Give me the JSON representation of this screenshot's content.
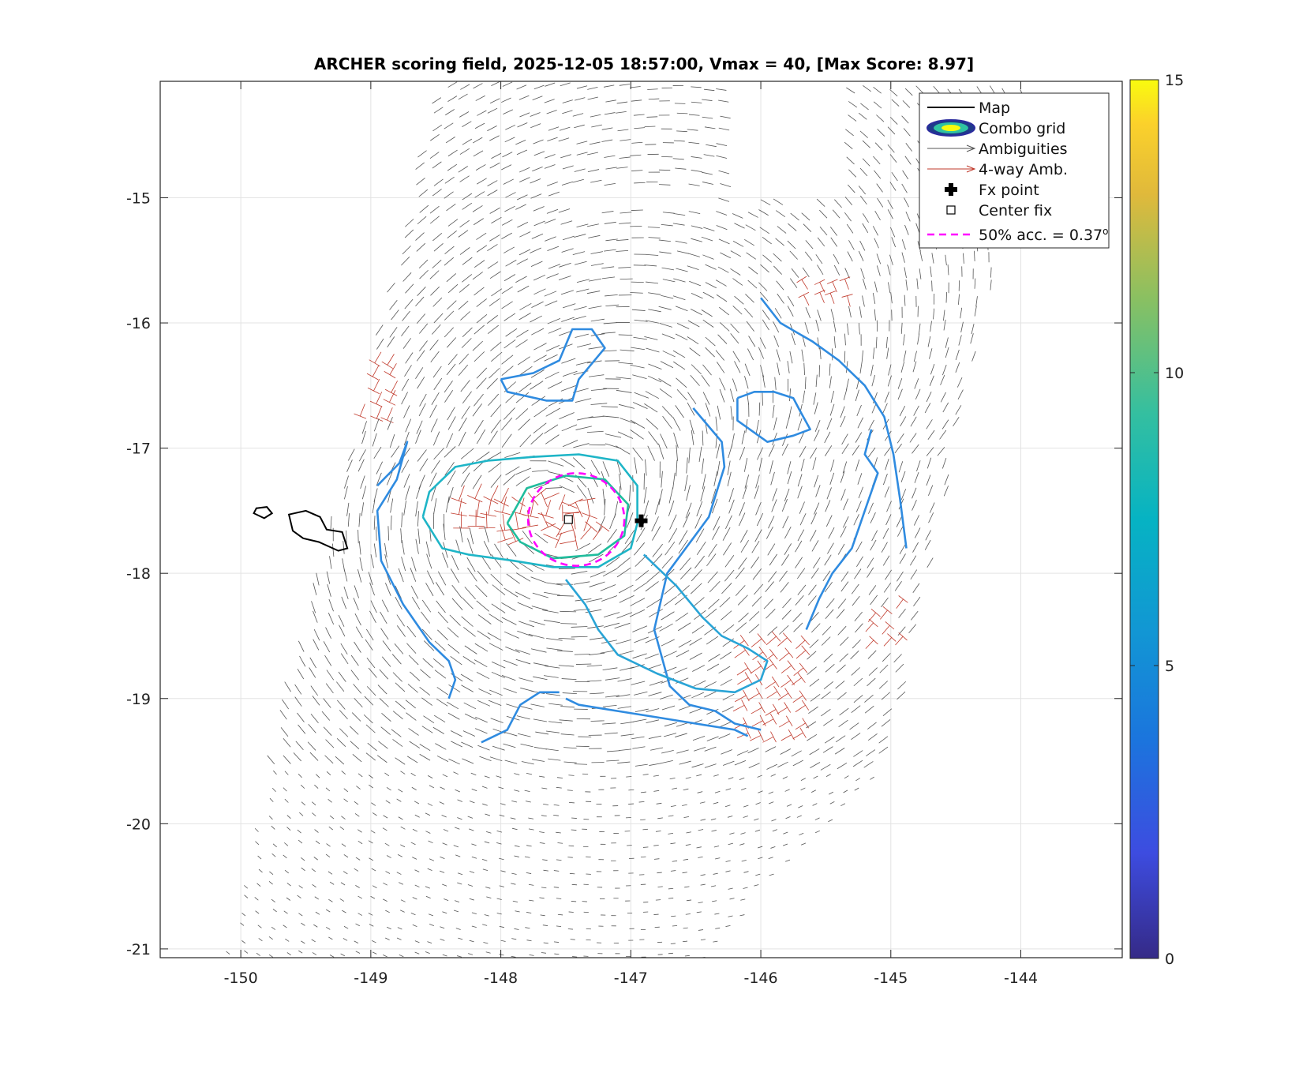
{
  "chart_data": {
    "type": "scatter",
    "title": "ARCHER scoring field, 2025-12-05 18:57:00, Vmax = 40, [Max Score: 8.97]",
    "xlim": [
      -150.62,
      -143.22
    ],
    "ylim": [
      -21.07,
      -14.07
    ],
    "x_ticks": [
      "-150",
      "-149",
      "-148",
      "-147",
      "-146",
      "-145",
      "-144"
    ],
    "y_ticks": [
      "-15",
      "-16",
      "-17",
      "-18",
      "-19",
      "-20",
      "-21"
    ],
    "grid": true,
    "legend_position": "top-right",
    "legend": [
      {
        "key": "map",
        "label": "Map"
      },
      {
        "key": "combo",
        "label": "Combo grid"
      },
      {
        "key": "amb",
        "label": "Ambiguities"
      },
      {
        "key": "amb4",
        "label": "4-way Amb."
      },
      {
        "key": "fx",
        "label": "Fx point"
      },
      {
        "key": "center",
        "label": "Center fix"
      },
      {
        "key": "acc",
        "label": "50% acc. = 0.37",
        "superscript": "o"
      }
    ],
    "fx_point": {
      "x": -146.92,
      "y": -17.58
    },
    "center_fix": {
      "x": -147.48,
      "y": -17.57
    },
    "accuracy_circle": {
      "x": -147.42,
      "y": -17.57,
      "radius_deg": 0.37
    },
    "colorbar": {
      "min": 0,
      "max": 15,
      "ticks": [
        "0",
        "5",
        "10",
        "15"
      ]
    },
    "contours": [
      {
        "level": 3.5,
        "color": "#2f8be0",
        "points": [
          [
            -146.52,
            -16.68
          ],
          [
            -146.3,
            -16.95
          ],
          [
            -146.28,
            -17.15
          ],
          [
            -146.4,
            -17.55
          ],
          [
            -146.72,
            -18.0
          ],
          [
            -146.82,
            -18.45
          ],
          [
            -146.7,
            -18.9
          ],
          [
            -146.55,
            -19.05
          ],
          [
            -146.35,
            -19.1
          ],
          [
            -146.2,
            -19.2
          ],
          [
            -146.0,
            -19.25
          ]
        ]
      },
      {
        "level": 3.8,
        "color": "#2f8be0",
        "points": [
          [
            -146.0,
            -15.8
          ],
          [
            -145.85,
            -16.0
          ],
          [
            -145.6,
            -16.15
          ],
          [
            -145.4,
            -16.3
          ],
          [
            -145.2,
            -16.5
          ],
          [
            -145.05,
            -16.75
          ],
          [
            -144.98,
            -17.05
          ],
          [
            -144.93,
            -17.4
          ],
          [
            -144.88,
            -17.8
          ]
        ]
      },
      {
        "level": 4.2,
        "color": "#2f8be0",
        "points": [
          [
            -148.0,
            -16.45
          ],
          [
            -147.75,
            -16.4
          ],
          [
            -147.55,
            -16.3
          ],
          [
            -147.45,
            -16.05
          ],
          [
            -147.3,
            -16.05
          ],
          [
            -147.2,
            -16.2
          ],
          [
            -147.4,
            -16.45
          ],
          [
            -147.45,
            -16.62
          ],
          [
            -147.65,
            -16.62
          ],
          [
            -147.95,
            -16.55
          ],
          [
            -148.0,
            -16.45
          ]
        ]
      },
      {
        "level": 4.6,
        "color": "#2f8be0",
        "points": [
          [
            -148.95,
            -17.3
          ],
          [
            -148.78,
            -17.12
          ],
          [
            -148.72,
            -16.95
          ],
          [
            -148.8,
            -17.25
          ],
          [
            -148.95,
            -17.5
          ],
          [
            -148.92,
            -17.9
          ],
          [
            -148.75,
            -18.25
          ],
          [
            -148.55,
            -18.55
          ],
          [
            -148.4,
            -18.7
          ],
          [
            -148.35,
            -18.85
          ],
          [
            -148.4,
            -19.0
          ]
        ]
      },
      {
        "level": 5.0,
        "color": "#2f8be0",
        "points": [
          [
            -146.18,
            -16.6
          ],
          [
            -146.05,
            -16.55
          ],
          [
            -145.9,
            -16.55
          ],
          [
            -145.75,
            -16.6
          ],
          [
            -145.7,
            -16.7
          ],
          [
            -145.62,
            -16.85
          ],
          [
            -145.75,
            -16.9
          ],
          [
            -145.95,
            -16.95
          ],
          [
            -146.18,
            -16.78
          ],
          [
            -146.18,
            -16.6
          ]
        ]
      },
      {
        "level": 5.2,
        "color": "#2f8be0",
        "points": [
          [
            -147.5,
            -19.0
          ],
          [
            -147.4,
            -19.05
          ],
          [
            -147.1,
            -19.1
          ],
          [
            -146.8,
            -19.15
          ],
          [
            -146.5,
            -19.2
          ],
          [
            -146.2,
            -19.25
          ],
          [
            -146.1,
            -19.3
          ]
        ]
      },
      {
        "level": 5.4,
        "color": "#2f8be0",
        "points": [
          [
            -148.15,
            -19.35
          ],
          [
            -147.95,
            -19.25
          ],
          [
            -147.85,
            -19.05
          ],
          [
            -147.7,
            -18.95
          ],
          [
            -147.55,
            -18.95
          ]
        ]
      },
      {
        "level": 5.6,
        "color": "#2f8be0",
        "points": [
          [
            -145.65,
            -18.45
          ],
          [
            -145.55,
            -18.2
          ],
          [
            -145.45,
            -18.0
          ],
          [
            -145.3,
            -17.8
          ],
          [
            -145.2,
            -17.5
          ],
          [
            -145.1,
            -17.2
          ],
          [
            -145.2,
            -17.05
          ],
          [
            -145.15,
            -16.85
          ]
        ]
      },
      {
        "level": 6.0,
        "color": "#29a4d6",
        "points": [
          [
            -147.5,
            -18.05
          ],
          [
            -147.35,
            -18.25
          ],
          [
            -147.25,
            -18.45
          ],
          [
            -147.1,
            -18.65
          ],
          [
            -146.8,
            -18.8
          ],
          [
            -146.5,
            -18.92
          ],
          [
            -146.2,
            -18.95
          ],
          [
            -146.0,
            -18.85
          ],
          [
            -145.95,
            -18.7
          ],
          [
            -146.1,
            -18.6
          ],
          [
            -146.3,
            -18.5
          ],
          [
            -146.45,
            -18.35
          ],
          [
            -146.65,
            -18.1
          ],
          [
            -146.9,
            -17.85
          ]
        ]
      },
      {
        "level": 6.5,
        "color": "#1eb5c7",
        "points": [
          [
            -148.6,
            -17.55
          ],
          [
            -148.55,
            -17.35
          ],
          [
            -148.35,
            -17.15
          ],
          [
            -148.1,
            -17.1
          ],
          [
            -147.75,
            -17.07
          ],
          [
            -147.4,
            -17.05
          ],
          [
            -147.1,
            -17.1
          ],
          [
            -146.95,
            -17.3
          ],
          [
            -146.95,
            -17.6
          ],
          [
            -147.0,
            -17.8
          ],
          [
            -147.25,
            -17.95
          ],
          [
            -147.6,
            -17.95
          ],
          [
            -147.9,
            -17.9
          ],
          [
            -148.25,
            -17.85
          ],
          [
            -148.45,
            -17.8
          ],
          [
            -148.6,
            -17.55
          ]
        ]
      },
      {
        "level": 7.5,
        "color": "#20bd9d",
        "points": [
          [
            -147.95,
            -17.6
          ],
          [
            -147.8,
            -17.32
          ],
          [
            -147.5,
            -17.22
          ],
          [
            -147.2,
            -17.25
          ],
          [
            -147.02,
            -17.45
          ],
          [
            -147.05,
            -17.7
          ],
          [
            -147.25,
            -17.85
          ],
          [
            -147.6,
            -17.88
          ],
          [
            -147.85,
            -17.75
          ],
          [
            -147.95,
            -17.6
          ]
        ]
      }
    ],
    "islands": [
      [
        [
          -149.88,
          -17.48
        ],
        [
          -149.8,
          -17.47
        ],
        [
          -149.76,
          -17.52
        ],
        [
          -149.82,
          -17.56
        ],
        [
          -149.9,
          -17.52
        ],
        [
          -149.88,
          -17.48
        ]
      ],
      [
        [
          -149.63,
          -17.53
        ],
        [
          -149.5,
          -17.5
        ],
        [
          -149.39,
          -17.55
        ],
        [
          -149.34,
          -17.65
        ],
        [
          -149.22,
          -17.67
        ],
        [
          -149.18,
          -17.8
        ],
        [
          -149.25,
          -17.82
        ],
        [
          -149.4,
          -17.75
        ],
        [
          -149.52,
          -17.72
        ],
        [
          -149.6,
          -17.66
        ],
        [
          -149.63,
          -17.53
        ]
      ]
    ],
    "four_way_regions": [
      {
        "x": [
          -146.2,
          -145.6
        ],
        "y": [
          -18.5,
          -19.35
        ]
      },
      {
        "x": [
          -145.2,
          -144.9
        ],
        "y": [
          -18.2,
          -18.6
        ]
      },
      {
        "x": [
          -145.7,
          -145.3
        ],
        "y": [
          -15.6,
          -15.85
        ]
      },
      {
        "x": [
          -148.4,
          -147.2
        ],
        "y": [
          -17.4,
          -17.75
        ]
      },
      {
        "x": [
          -149.1,
          -148.8
        ],
        "y": [
          -16.3,
          -16.8
        ]
      }
    ],
    "swath": {
      "corners": [
        [
          -148.5,
          -14.05
        ],
        [
          -143.9,
          -14.05
        ],
        [
          -145.0,
          -19.5
        ],
        [
          -150.1,
          -21.07
        ]
      ]
    }
  }
}
